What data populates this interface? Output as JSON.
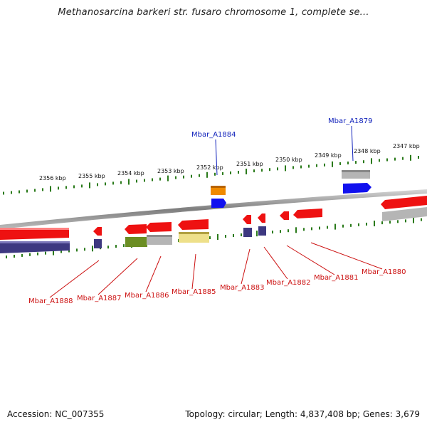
{
  "title": "Methanosarcina barkeri str. fusaro chromosome 1, complete se...",
  "footer": {
    "accession": "Accession: NC_007355",
    "summary": "Topology: circular; Length: 4,837,408 bp; Genes: 3,679"
  },
  "ruler": {
    "ticks": [
      "2356 kbp",
      "2355 kbp",
      "2354 kbp",
      "2353 kbp",
      "2352 kbp",
      "2351 kbp",
      "2350 kbp",
      "2349 kbp",
      "2348 kbp",
      "2347 kbp"
    ],
    "tick_color": "#2a7a1a"
  },
  "colors": {
    "backbone": "#8c8c8c",
    "gene_red": "#ee1111",
    "cds_navy": "#3d3880",
    "olive": "#6b8e23",
    "gray": "#b5b5b5",
    "pale_yellow": "#eee08a",
    "blue": "#1111ee",
    "orange": "#f08a00",
    "label_red": "#cc1111",
    "label_blue": "#1122bb"
  },
  "labels": {
    "above": [
      "Mbar_A1884",
      "Mbar_A1879"
    ],
    "below": [
      "Mbar_A1888",
      "Mbar_A1887",
      "Mbar_A1886",
      "Mbar_A1885",
      "Mbar_A1883",
      "Mbar_A1882",
      "Mbar_A1881",
      "Mbar_A1880"
    ]
  }
}
